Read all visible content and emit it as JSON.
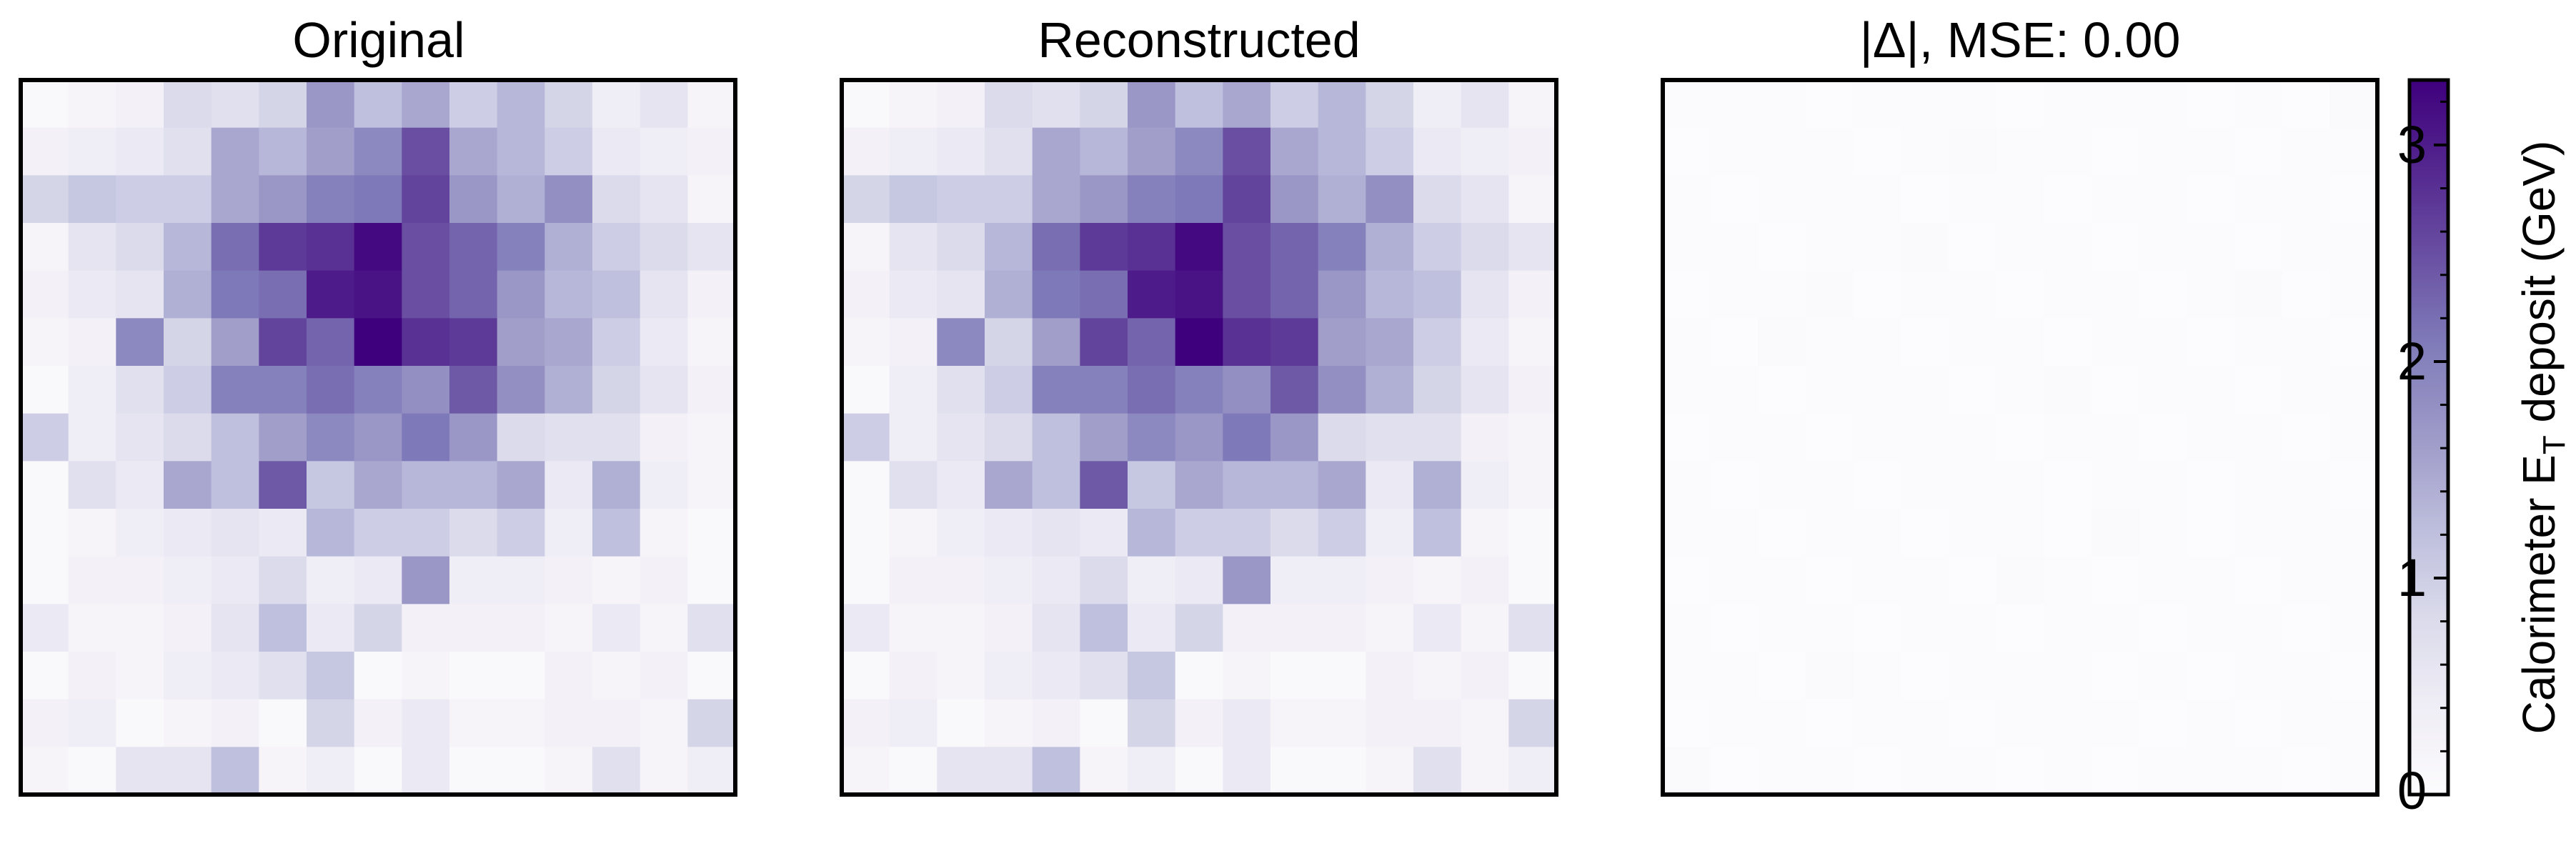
{
  "figure": {
    "panels": [
      {
        "title": "Original"
      },
      {
        "title": "Reconstructed"
      },
      {
        "title": "|Δ|, MSE:  0.00"
      }
    ],
    "colorbar": {
      "label": "Calorimeter E",
      "label_subscript": "T",
      "label_suffix": " deposit (GeV)",
      "ticks": [
        "0",
        "1",
        "2",
        "3"
      ],
      "range": [
        0,
        3.3
      ],
      "colormap": "Purples",
      "colors": [
        "#fcfbfd",
        "#efedf5",
        "#dadaeb",
        "#bcbddc",
        "#9e9ac8",
        "#807dba",
        "#6a51a3",
        "#54278f",
        "#3f007d"
      ]
    }
  },
  "chart_data": {
    "type": "heatmap",
    "grid_size": [
      15,
      15
    ],
    "axes_ticks": "none",
    "panels": [
      {
        "title": "Original",
        "values": [
          [
            0.1,
            0.2,
            0.3,
            0.8,
            0.7,
            0.9,
            1.7,
            1.2,
            1.5,
            1.0,
            1.3,
            0.9,
            0.4,
            0.6,
            0.2
          ],
          [
            0.3,
            0.4,
            0.5,
            0.7,
            1.5,
            1.3,
            1.6,
            1.9,
            2.5,
            1.5,
            1.3,
            1.0,
            0.5,
            0.4,
            0.3
          ],
          [
            0.9,
            1.1,
            1.0,
            1.0,
            1.5,
            1.7,
            2.0,
            2.1,
            2.6,
            1.7,
            1.4,
            1.8,
            0.8,
            0.6,
            0.2
          ],
          [
            0.2,
            0.6,
            0.8,
            1.3,
            2.2,
            2.7,
            2.8,
            3.2,
            2.5,
            2.3,
            2.0,
            1.4,
            1.0,
            0.8,
            0.6
          ],
          [
            0.3,
            0.5,
            0.6,
            1.4,
            2.1,
            2.2,
            3.0,
            3.1,
            2.5,
            2.3,
            1.7,
            1.3,
            1.2,
            0.6,
            0.3
          ],
          [
            0.2,
            0.3,
            1.9,
            0.9,
            1.6,
            2.6,
            2.3,
            3.3,
            2.8,
            2.7,
            1.6,
            1.5,
            1.0,
            0.5,
            0.2
          ],
          [
            0.1,
            0.4,
            0.7,
            1.0,
            2.0,
            2.0,
            2.2,
            2.0,
            1.8,
            2.4,
            1.8,
            1.4,
            0.9,
            0.6,
            0.3
          ],
          [
            1.0,
            0.4,
            0.6,
            0.8,
            1.2,
            1.6,
            1.9,
            1.7,
            2.1,
            1.7,
            0.8,
            0.7,
            0.7,
            0.3,
            0.2
          ],
          [
            0.1,
            0.7,
            0.5,
            1.5,
            1.2,
            2.4,
            1.1,
            1.5,
            1.3,
            1.3,
            1.5,
            0.5,
            1.4,
            0.4,
            0.2
          ],
          [
            0.1,
            0.2,
            0.4,
            0.5,
            0.6,
            0.5,
            1.3,
            1.0,
            1.0,
            0.8,
            1.0,
            0.4,
            1.2,
            0.2,
            0.1
          ],
          [
            0.1,
            0.3,
            0.3,
            0.4,
            0.5,
            0.8,
            0.4,
            0.5,
            1.7,
            0.4,
            0.4,
            0.3,
            0.2,
            0.3,
            0.1
          ],
          [
            0.5,
            0.2,
            0.2,
            0.3,
            0.6,
            1.2,
            0.5,
            0.9,
            0.3,
            0.3,
            0.3,
            0.2,
            0.5,
            0.2,
            0.7
          ],
          [
            0.1,
            0.3,
            0.2,
            0.4,
            0.5,
            0.7,
            1.1,
            0.1,
            0.2,
            0.1,
            0.1,
            0.3,
            0.2,
            0.3,
            0.1
          ],
          [
            0.3,
            0.4,
            0.1,
            0.2,
            0.3,
            0.1,
            0.9,
            0.3,
            0.5,
            0.2,
            0.2,
            0.3,
            0.3,
            0.2,
            0.9
          ],
          [
            0.2,
            0.1,
            0.6,
            0.6,
            1.2,
            0.2,
            0.4,
            0.1,
            0.5,
            0.1,
            0.1,
            0.2,
            0.7,
            0.2,
            0.4
          ]
        ]
      },
      {
        "title": "Reconstructed",
        "values": [
          [
            0.1,
            0.2,
            0.3,
            0.8,
            0.7,
            0.9,
            1.7,
            1.2,
            1.5,
            1.0,
            1.3,
            0.9,
            0.4,
            0.6,
            0.2
          ],
          [
            0.3,
            0.4,
            0.5,
            0.7,
            1.5,
            1.3,
            1.6,
            1.9,
            2.5,
            1.5,
            1.3,
            1.0,
            0.5,
            0.4,
            0.3
          ],
          [
            0.9,
            1.1,
            1.0,
            1.0,
            1.5,
            1.7,
            2.0,
            2.1,
            2.6,
            1.7,
            1.4,
            1.8,
            0.8,
            0.6,
            0.2
          ],
          [
            0.2,
            0.6,
            0.8,
            1.3,
            2.2,
            2.7,
            2.8,
            3.2,
            2.5,
            2.3,
            2.0,
            1.4,
            1.0,
            0.8,
            0.6
          ],
          [
            0.3,
            0.5,
            0.6,
            1.4,
            2.1,
            2.2,
            3.0,
            3.1,
            2.5,
            2.3,
            1.7,
            1.3,
            1.2,
            0.6,
            0.3
          ],
          [
            0.2,
            0.3,
            1.9,
            0.9,
            1.6,
            2.6,
            2.3,
            3.3,
            2.8,
            2.7,
            1.6,
            1.5,
            1.0,
            0.5,
            0.2
          ],
          [
            0.1,
            0.4,
            0.7,
            1.0,
            2.0,
            2.0,
            2.2,
            2.0,
            1.8,
            2.4,
            1.8,
            1.4,
            0.9,
            0.6,
            0.3
          ],
          [
            1.0,
            0.4,
            0.6,
            0.8,
            1.2,
            1.6,
            1.9,
            1.7,
            2.1,
            1.7,
            0.8,
            0.7,
            0.7,
            0.3,
            0.2
          ],
          [
            0.1,
            0.7,
            0.5,
            1.5,
            1.2,
            2.4,
            1.1,
            1.5,
            1.3,
            1.3,
            1.5,
            0.5,
            1.4,
            0.4,
            0.2
          ],
          [
            0.1,
            0.2,
            0.4,
            0.5,
            0.6,
            0.5,
            1.3,
            1.0,
            1.0,
            0.8,
            1.0,
            0.4,
            1.2,
            0.2,
            0.1
          ],
          [
            0.1,
            0.3,
            0.3,
            0.4,
            0.5,
            0.8,
            0.4,
            0.5,
            1.7,
            0.4,
            0.4,
            0.3,
            0.2,
            0.3,
            0.1
          ],
          [
            0.5,
            0.2,
            0.2,
            0.3,
            0.6,
            1.2,
            0.5,
            0.9,
            0.3,
            0.3,
            0.3,
            0.2,
            0.5,
            0.2,
            0.7
          ],
          [
            0.1,
            0.3,
            0.2,
            0.4,
            0.5,
            0.7,
            1.1,
            0.1,
            0.2,
            0.1,
            0.1,
            0.3,
            0.2,
            0.3,
            0.1
          ],
          [
            0.3,
            0.4,
            0.1,
            0.2,
            0.3,
            0.1,
            0.9,
            0.3,
            0.5,
            0.2,
            0.2,
            0.3,
            0.3,
            0.2,
            0.9
          ],
          [
            0.2,
            0.1,
            0.6,
            0.6,
            1.2,
            0.2,
            0.4,
            0.1,
            0.5,
            0.1,
            0.1,
            0.2,
            0.7,
            0.2,
            0.4
          ]
        ]
      },
      {
        "title": "|Δ|, MSE:  0.00",
        "values": [
          [
            0.03,
            0.02,
            0.04,
            0.01,
            0.02,
            0.03,
            0.02,
            0.01,
            0.03,
            0.02,
            0.04,
            0.01,
            0.02,
            0.01,
            0.05
          ],
          [
            0.01,
            0.04,
            0.02,
            0.03,
            0.01,
            0.02,
            0.05,
            0.03,
            0.02,
            0.01,
            0.03,
            0.04,
            0.01,
            0.03,
            0.02
          ],
          [
            0.02,
            0.01,
            0.03,
            0.02,
            0.04,
            0.01,
            0.02,
            0.03,
            0.01,
            0.04,
            0.02,
            0.01,
            0.03,
            0.02,
            0.01
          ],
          [
            0.04,
            0.02,
            0.01,
            0.03,
            0.02,
            0.05,
            0.01,
            0.02,
            0.03,
            0.01,
            0.02,
            0.03,
            0.01,
            0.04,
            0.02
          ],
          [
            0.01,
            0.03,
            0.02,
            0.06,
            0.01,
            0.02,
            0.03,
            0.01,
            0.02,
            0.04,
            0.01,
            0.02,
            0.05,
            0.01,
            0.03
          ],
          [
            0.02,
            0.01,
            0.05,
            0.02,
            0.03,
            0.01,
            0.02,
            0.04,
            0.01,
            0.02,
            0.03,
            0.01,
            0.02,
            0.03,
            0.01
          ],
          [
            0.03,
            0.02,
            0.01,
            0.04,
            0.02,
            0.03,
            0.01,
            0.02,
            0.05,
            0.01,
            0.02,
            0.04,
            0.01,
            0.02,
            0.03
          ],
          [
            0.01,
            0.04,
            0.02,
            0.01,
            0.03,
            0.02,
            0.04,
            0.01,
            0.02,
            0.03,
            0.01,
            0.02,
            0.03,
            0.01,
            0.02
          ],
          [
            0.02,
            0.01,
            0.03,
            0.02,
            0.01,
            0.04,
            0.02,
            0.03,
            0.01,
            0.02,
            0.04,
            0.01,
            0.02,
            0.03,
            0.01
          ],
          [
            0.04,
            0.02,
            0.01,
            0.03,
            0.02,
            0.01,
            0.03,
            0.02,
            0.01,
            0.05,
            0.02,
            0.01,
            0.03,
            0.02,
            0.04
          ],
          [
            0.01,
            0.03,
            0.02,
            0.01,
            0.04,
            0.02,
            0.01,
            0.06,
            0.02,
            0.01,
            0.03,
            0.02,
            0.01,
            0.04,
            0.02
          ],
          [
            0.02,
            0.01,
            0.04,
            0.02,
            0.01,
            0.03,
            0.02,
            0.01,
            0.03,
            0.02,
            0.01,
            0.04,
            0.02,
            0.01,
            0.03
          ],
          [
            0.03,
            0.02,
            0.01,
            0.05,
            0.02,
            0.01,
            0.03,
            0.02,
            0.04,
            0.01,
            0.02,
            0.01,
            0.03,
            0.02,
            0.01
          ],
          [
            0.01,
            0.04,
            0.02,
            0.01,
            0.03,
            0.02,
            0.01,
            0.03,
            0.02,
            0.04,
            0.01,
            0.02,
            0.01,
            0.03,
            0.04
          ],
          [
            0.05,
            0.01,
            0.03,
            0.02,
            0.01,
            0.04,
            0.02,
            0.01,
            0.02,
            0.01,
            0.03,
            0.02,
            0.04,
            0.01,
            0.02
          ]
        ]
      }
    ],
    "colorbar": {
      "ticks": [
        0,
        1,
        2,
        3
      ],
      "range": [
        0,
        3.3
      ]
    }
  }
}
